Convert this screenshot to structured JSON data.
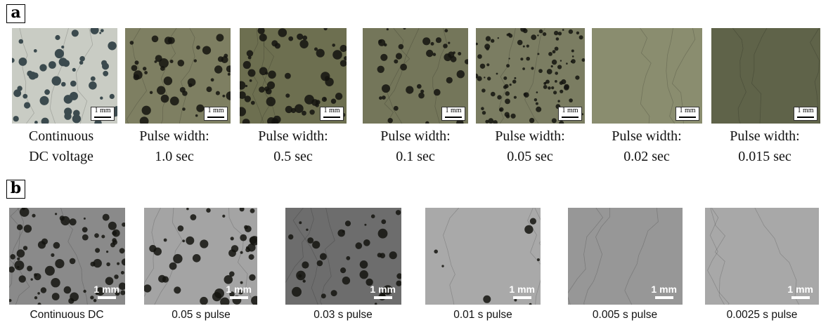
{
  "panel_a": {
    "label": "a",
    "items": [
      {
        "line1": "Continuous",
        "line2": "DC  voltage",
        "scale": "1 mm",
        "bg": "#c9ccc4"
      },
      {
        "line1": "Pulse width:",
        "line2": "1.0 sec",
        "scale": "1 mm",
        "bg": "#7e7f62"
      },
      {
        "line1": "Pulse width:",
        "line2": "0.5 sec",
        "scale": "1 mm",
        "bg": "#6d6f50"
      },
      {
        "line1": "Pulse width:",
        "line2": "0.1 sec",
        "scale": "1 mm",
        "bg": "#74765a"
      },
      {
        "line1": "Pulse width:",
        "line2": "0.05 sec",
        "scale": "1 mm",
        "bg": "#7b7d62"
      },
      {
        "line1": "Pulse width:",
        "line2": "0.02 sec",
        "scale": "1 mm",
        "bg": "#8a8d6f"
      },
      {
        "line1": "Pulse width:",
        "line2": "0.015 sec",
        "scale": "1 mm",
        "bg": "#5f6349"
      }
    ]
  },
  "panel_b": {
    "label": "b",
    "items": [
      {
        "caption": "Continuous DC",
        "scale": "1 mm",
        "bg": "#8a8a8a"
      },
      {
        "caption": "0.05 s pulse",
        "scale": "1 mm",
        "bg": "#a4a4a4"
      },
      {
        "caption": "0.03 s pulse",
        "scale": "1 mm",
        "bg": "#6d6d6d"
      },
      {
        "caption": "0.01 s pulse",
        "scale": "1 mm",
        "bg": "#a9a9a9"
      },
      {
        "caption": "0.005 s pulse",
        "scale": "1 mm",
        "bg": "#979797"
      },
      {
        "caption": "0.0025 s pulse",
        "scale": "1 mm",
        "bg": "#a8a8a8"
      }
    ]
  }
}
